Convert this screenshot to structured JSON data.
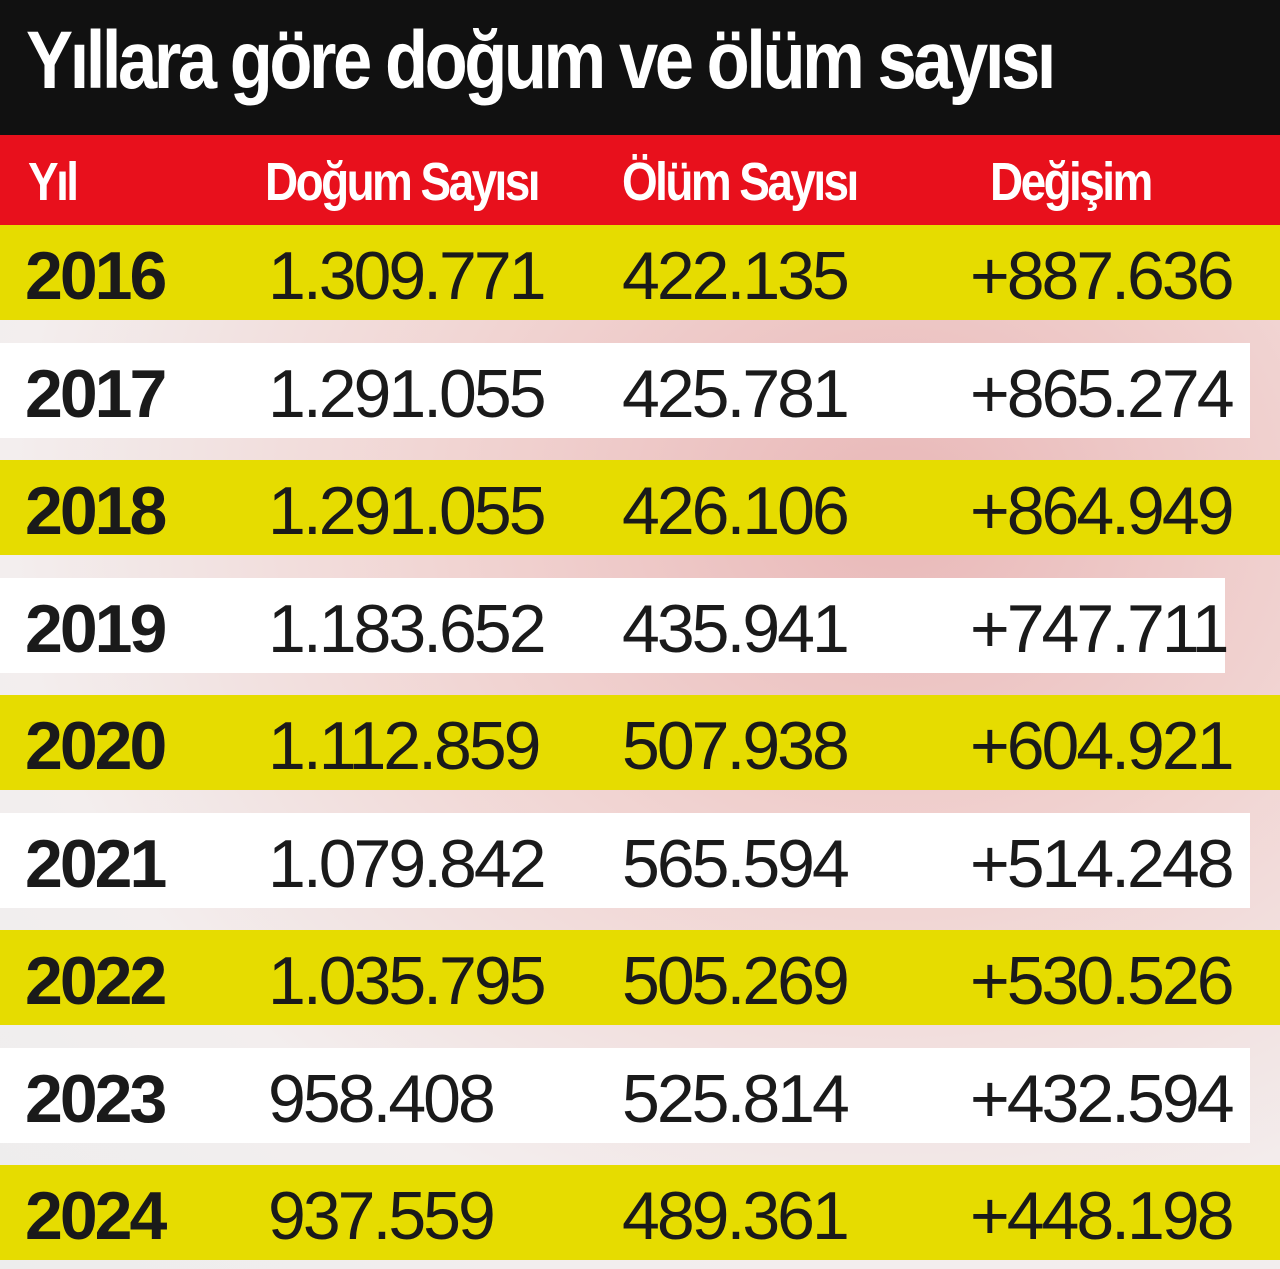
{
  "table": {
    "title": "Yıllara göre doğum ve ölüm sayısı",
    "headers": [
      "Yıl",
      "Doğum Sayısı",
      "Ölüm Sayısı",
      "Değişim"
    ],
    "rows": [
      [
        "2016",
        "1.309.771",
        "422.135",
        "+887.636"
      ],
      [
        "2017",
        "1.291.055",
        "425.781",
        "+865.274"
      ],
      [
        "2018",
        "1.291.055",
        "426.106",
        "+864.949"
      ],
      [
        "2019",
        "1.183.652",
        "435.941",
        "+747.711"
      ],
      [
        "2020",
        "1.112.859",
        "507.938",
        "+604.921"
      ],
      [
        "2021",
        "1.079.842",
        "565.594",
        "+514.248"
      ],
      [
        "2022",
        "1.035.795",
        "505.269",
        "+530.526"
      ],
      [
        "2023",
        "958.408",
        "525.814",
        "+432.594"
      ],
      [
        "2024",
        "937.559",
        "489.361",
        "+448.198"
      ]
    ]
  }
}
